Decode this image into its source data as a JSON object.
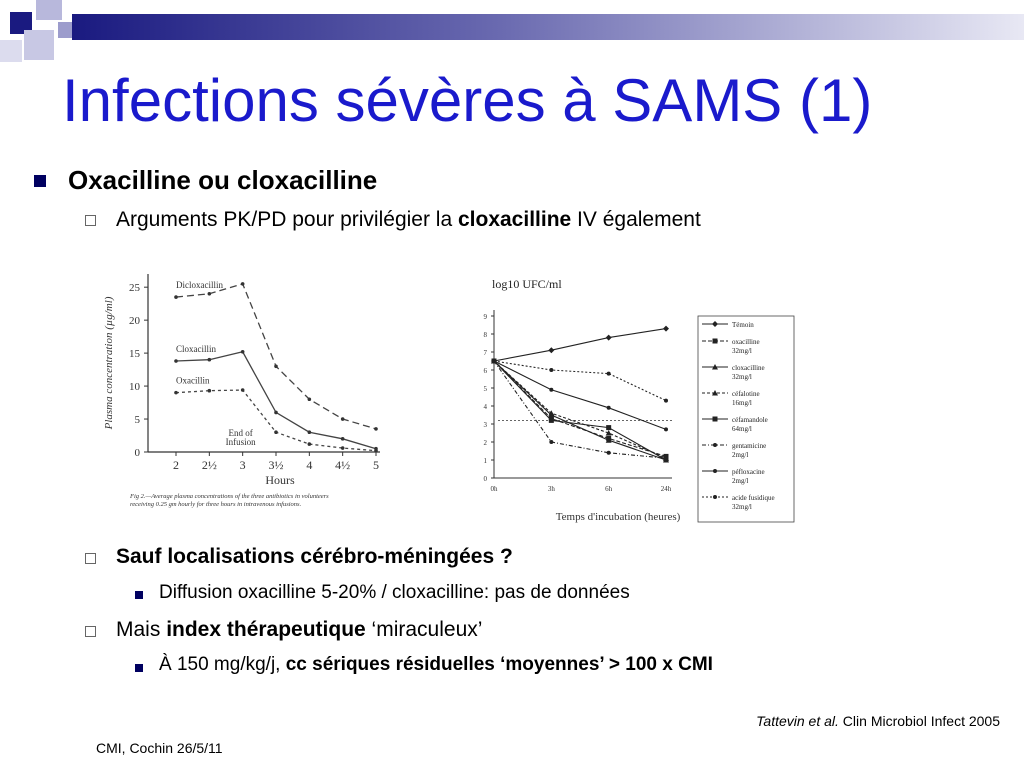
{
  "slide": {
    "title": "Infections sévères à SAMS (1)",
    "bullet1": "Oxacilline ou cloxacilline",
    "sub1": {
      "pre": "Arguments PK/PD pour privilégier la ",
      "bold": "cloxacilline",
      "post": " IV également"
    },
    "sub2": "Sauf localisations cérébro-méningées ?",
    "sub2_item": "Diffusion oxacilline 5-20% / cloxacilline: pas de données",
    "sub3": {
      "pre": "Mais ",
      "bold": "index thérapeutique",
      "post": " ‘miraculeux’"
    },
    "sub3_item": {
      "pre": "À 150 mg/kg/j, ",
      "bold": "cc sériques résiduelles ‘moyennes’ > 100 x CMI"
    },
    "reference": {
      "italic": "Tattevin et al.",
      "rest": " Clin Microbiol Infect 2005"
    },
    "footer": "CMI, Cochin 26/5/11"
  },
  "colors": {
    "title": "#1a1acc",
    "bullet": "#000060"
  },
  "chart_data": [
    {
      "type": "line",
      "ylabel": "Plasma concentration (µg/ml)",
      "xlabel": "Hours",
      "x": [
        2,
        2.5,
        3,
        3.5,
        4,
        4.5,
        5
      ],
      "x_ticks": [
        "2",
        "2½",
        "3",
        "3½",
        "4",
        "4½",
        "5"
      ],
      "y_ticks": [
        "0",
        "5",
        "10",
        "15",
        "20",
        "25"
      ],
      "ylim": [
        0,
        27
      ],
      "annotation": "End of Infusion",
      "caption": "Fig 2.—Average plasma concentrations of the three antibiotics in volunteers receiving 0.25 gm hourly for three hours in intravenous infusions.",
      "series": [
        {
          "name": "Dicloxacillin",
          "values": [
            23.5,
            24,
            25.5,
            13,
            8,
            5,
            3.5
          ]
        },
        {
          "name": "Cloxacillin",
          "values": [
            13.8,
            14,
            15.2,
            6,
            3,
            2,
            0.5
          ]
        },
        {
          "name": "Oxacillin",
          "values": [
            9,
            9.3,
            9.4,
            3,
            1.2,
            0.6,
            0.2
          ]
        }
      ]
    },
    {
      "type": "line",
      "ylabel": "log10 UFC/ml",
      "xlabel": "Temps d'incubation (heures)",
      "x_ticks": [
        "0h",
        "3h",
        "6h",
        "24h"
      ],
      "y_ticks": [
        "0",
        "1",
        "2",
        "3",
        "4",
        "5",
        "6",
        "7",
        "8",
        "9"
      ],
      "ylim": [
        0,
        9
      ],
      "series": [
        {
          "name": "Témoin",
          "values": [
            6.5,
            7.1,
            7.8,
            8.3
          ]
        },
        {
          "name": "oxacilline 32mg/l",
          "values": [
            6.5,
            3.3,
            2.2,
            1.2
          ]
        },
        {
          "name": "cloxacilline 32mg/l",
          "values": [
            6.5,
            3.5,
            2.1,
            1.0
          ]
        },
        {
          "name": "céfalotine 16mg/l",
          "values": [
            6.5,
            3.6,
            2.5,
            1.1
          ]
        },
        {
          "name": "céfamandole 64mg/l",
          "values": [
            6.5,
            3.2,
            2.8,
            1.0
          ]
        },
        {
          "name": "gentamicine 2mg/l",
          "values": [
            6.5,
            2.0,
            1.4,
            1.1
          ]
        },
        {
          "name": "péfloxacine 2mg/l",
          "values": [
            6.5,
            4.9,
            3.9,
            2.7
          ]
        },
        {
          "name": "acide fusidique 32mg/l",
          "values": [
            6.5,
            6.0,
            5.8,
            4.3
          ]
        }
      ]
    }
  ]
}
